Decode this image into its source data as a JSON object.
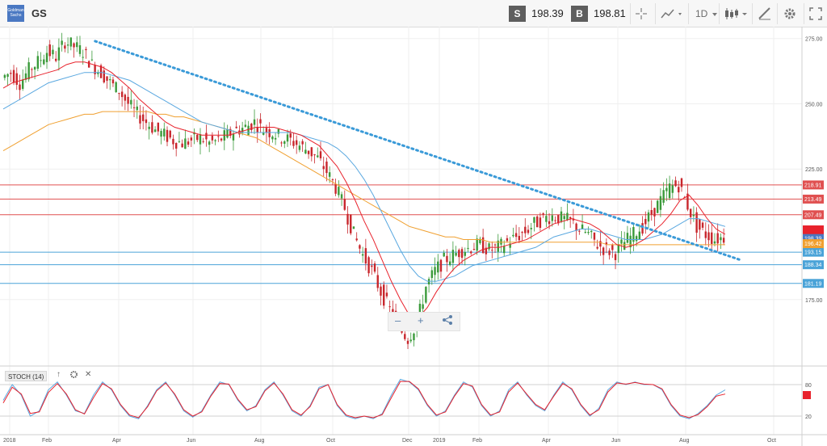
{
  "toolbar": {
    "logo_text": "Goldman Sachs",
    "symbol": "GS",
    "sell_label": "S",
    "sell_price": "198.39",
    "buy_label": "B",
    "buy_price": "198.81",
    "interval": "1D",
    "icons": [
      "crosshair-icon",
      "chart-type-icon",
      "interval-dropdown",
      "candles-icon",
      "drawing-icon",
      "settings-icon",
      "fullscreen-icon"
    ]
  },
  "zoom": {
    "minus": "–",
    "plus": "+",
    "share": "share-icon"
  },
  "stoch": {
    "label": "STOCH (14)",
    "arrow": "↑",
    "close": "✕"
  },
  "chart_data": {
    "type": "candlestick",
    "title": "GS",
    "y_ticks": [
      275.0,
      250.0,
      225.0,
      175.0
    ],
    "y_tick_labels": [
      "275.00",
      "250.00",
      "225.00",
      "175.00"
    ],
    "ylim": [
      148,
      278
    ],
    "x_labels": [
      "2018",
      "Feb",
      "Apr",
      "Jun",
      "Aug",
      "Oct",
      "Dec",
      "2019",
      "Feb",
      "Apr",
      "Jun",
      "Aug",
      "Oct"
    ],
    "resistance_levels": [
      {
        "value": 218.91,
        "label": "218.91",
        "color": "#e05050"
      },
      {
        "value": 213.49,
        "label": "213.49",
        "color": "#e05050"
      },
      {
        "value": 207.49,
        "label": "207.49",
        "color": "#e05050"
      }
    ],
    "support_levels": [
      {
        "value": 193.15,
        "label": "193.15",
        "color": "#4aa3d8"
      },
      {
        "value": 188.34,
        "label": "188.34",
        "color": "#4aa3d8"
      },
      {
        "value": 181.19,
        "label": "181.19",
        "color": "#4aa3d8"
      }
    ],
    "current_tags": [
      {
        "value": 201.7,
        "label": "",
        "color": "#e8222c"
      },
      {
        "value": 198.39,
        "label": "198.39",
        "color": "#4a78c2"
      },
      {
        "value": 196.42,
        "label": "196.42",
        "color": "#f0a030"
      }
    ],
    "trendline": {
      "from": [
        0.115,
        274
      ],
      "to": [
        0.897,
        190
      ],
      "color": "#3a9ad8"
    },
    "series_close": [
      260,
      262,
      258,
      263,
      266,
      270,
      268,
      274,
      272,
      270,
      265,
      262,
      258,
      255,
      250,
      246,
      243,
      240,
      238,
      236,
      235,
      236,
      237,
      235,
      236,
      238,
      240,
      241,
      243,
      240,
      239,
      237,
      236,
      234,
      232,
      229,
      224,
      218,
      210,
      200,
      192,
      186,
      178,
      171,
      164,
      160,
      166,
      180,
      186,
      190,
      192,
      194,
      195,
      196,
      194,
      195,
      197,
      199,
      201,
      204,
      206,
      207,
      206,
      205,
      202,
      200,
      196,
      194,
      193,
      197,
      200,
      203,
      208,
      213,
      218,
      219,
      211,
      203,
      200,
      198,
      199
    ],
    "sma_red": [
      256,
      258,
      259,
      260,
      261,
      262,
      263,
      265,
      266,
      266,
      265,
      264,
      262,
      259,
      256,
      252,
      249,
      246,
      243,
      241,
      240,
      239,
      238,
      238,
      238,
      238,
      239,
      240,
      241,
      241,
      241,
      240,
      239,
      238,
      236,
      234,
      230,
      226,
      220,
      213,
      205,
      198,
      190,
      182,
      175,
      169,
      168,
      172,
      178,
      183,
      187,
      190,
      192,
      194,
      195,
      195,
      196,
      197,
      198,
      200,
      202,
      204,
      205,
      206,
      205,
      204,
      202,
      199,
      196,
      195,
      196,
      198,
      201,
      204,
      208,
      213,
      215,
      211,
      206,
      202,
      200
    ],
    "sma_blue": [
      248,
      250,
      252,
      254,
      256,
      258,
      259,
      260,
      261,
      262,
      262,
      262,
      261,
      260,
      259,
      257,
      255,
      253,
      251,
      249,
      247,
      245,
      243,
      242,
      241,
      240,
      239,
      239,
      239,
      239,
      239,
      239,
      239,
      238,
      237,
      236,
      235,
      233,
      230,
      226,
      221,
      215,
      208,
      201,
      194,
      188,
      184,
      182,
      182,
      183,
      184,
      186,
      188,
      189,
      190,
      191,
      192,
      193,
      194,
      195,
      197,
      199,
      200,
      201,
      202,
      202,
      201,
      200,
      199,
      198,
      198,
      198,
      199,
      200,
      202,
      204,
      206,
      206,
      205,
      204,
      203
    ],
    "sma_orange": [
      232,
      234,
      236,
      238,
      240,
      242,
      243,
      244,
      245,
      246,
      246,
      247,
      247,
      247,
      247,
      247,
      247,
      246,
      246,
      245,
      245,
      244,
      243,
      242,
      241,
      240,
      239,
      238,
      237,
      235,
      233,
      231,
      229,
      227,
      225,
      223,
      221,
      219,
      217,
      215,
      213,
      211,
      209,
      207,
      205,
      203,
      202,
      201,
      200,
      199,
      199,
      198,
      198,
      198,
      197,
      197,
      197,
      197,
      197,
      197,
      197,
      197,
      197,
      197,
      197,
      197,
      197,
      196,
      196,
      196,
      196,
      196,
      196,
      196,
      196,
      196,
      196,
      196,
      196,
      196,
      196
    ],
    "stoch": {
      "y_ticks": [
        80,
        20
      ],
      "k": [
        50,
        80,
        60,
        20,
        30,
        70,
        85,
        60,
        30,
        25,
        60,
        85,
        70,
        40,
        20,
        15,
        40,
        70,
        85,
        60,
        30,
        18,
        30,
        60,
        85,
        80,
        50,
        30,
        40,
        70,
        85,
        60,
        30,
        20,
        40,
        75,
        80,
        40,
        20,
        15,
        20,
        15,
        25,
        60,
        90,
        85,
        70,
        40,
        20,
        30,
        60,
        85,
        75,
        40,
        20,
        30,
        70,
        85,
        60,
        40,
        30,
        60,
        85,
        70,
        40,
        20,
        35,
        70,
        85,
        80,
        85,
        80,
        80,
        70,
        40,
        20,
        15,
        25,
        40,
        60,
        70
      ],
      "d": [
        45,
        75,
        62,
        25,
        28,
        65,
        82,
        62,
        32,
        24,
        55,
        82,
        72,
        42,
        22,
        17,
        38,
        68,
        83,
        62,
        32,
        20,
        28,
        58,
        82,
        81,
        52,
        32,
        38,
        68,
        83,
        62,
        32,
        22,
        38,
        72,
        80,
        42,
        22,
        17,
        20,
        17,
        23,
        55,
        86,
        86,
        72,
        42,
        22,
        28,
        58,
        82,
        77,
        42,
        22,
        28,
        66,
        83,
        62,
        42,
        32,
        58,
        82,
        72,
        42,
        22,
        32,
        66,
        83,
        81,
        84,
        81,
        80,
        72,
        42,
        22,
        17,
        23,
        38,
        58,
        62
      ]
    }
  }
}
